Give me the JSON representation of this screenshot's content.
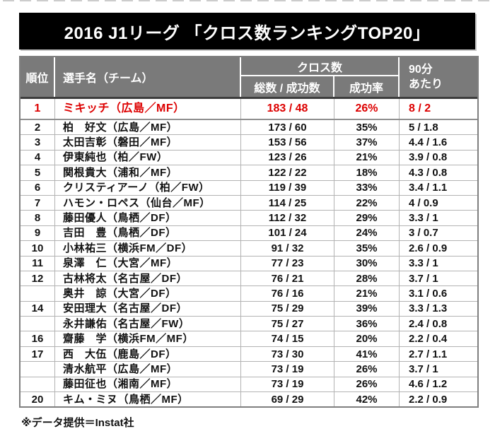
{
  "colors": {
    "banner_bg": "#000000",
    "banner_text": "#ffffff",
    "header_bg": "#7a7a7a",
    "highlight_red": "#dd0000",
    "grid_line": "#b3b3b3"
  },
  "table": {
    "header": {
      "rank": "順位",
      "player": "選手名（チーム）",
      "cross": "クロス数",
      "total_success": "総数 / 成功数",
      "success_rate": "成功率",
      "per90_line1": "90分",
      "per90_line2": "あたり"
    }
  },
  "chart_data": {
    "type": "table",
    "title": "2016 J1リーグ 「クロス数ランキングTOP20」",
    "columns": [
      "順位",
      "選手名（チーム）",
      "クロス数 総数 / 成功数",
      "クロス数 成功率",
      "90分あたり"
    ],
    "note": "※データ提供＝Instat社",
    "highlight_rank": "1",
    "rows": [
      {
        "rank": "1",
        "player": "ミキッチ（広島／MF）",
        "total_success": "183 / 48",
        "success_rate": "26%",
        "per90": "8 / 2",
        "highlight": true
      },
      {
        "rank": "2",
        "player": "柏　好文（広島／MF）",
        "total_success": "173 / 60",
        "success_rate": "35%",
        "per90": "5 / 1.8"
      },
      {
        "rank": "3",
        "player": "太田吉彰（磐田／MF）",
        "total_success": "153 / 56",
        "success_rate": "37%",
        "per90": "4.4 / 1.6"
      },
      {
        "rank": "4",
        "player": "伊東純也（柏／FW）",
        "total_success": "123 / 26",
        "success_rate": "21%",
        "per90": "3.9 / 0.8"
      },
      {
        "rank": "5",
        "player": "関根貴大（浦和／MF）",
        "total_success": "122 / 22",
        "success_rate": "18%",
        "per90": "4.3 / 0.8"
      },
      {
        "rank": "6",
        "player": "クリスティアーノ（柏／FW）",
        "total_success": "119 / 39",
        "success_rate": "33%",
        "per90": "3.4 / 1.1"
      },
      {
        "rank": "7",
        "player": "ハモン・ロペス（仙台／MF）",
        "total_success": "114 / 25",
        "success_rate": "22%",
        "per90": "4 / 0.9"
      },
      {
        "rank": "8",
        "player": "藤田優人（鳥栖／DF）",
        "total_success": "112 / 32",
        "success_rate": "29%",
        "per90": "3.3 / 1"
      },
      {
        "rank": "9",
        "player": "吉田　豊（鳥栖／DF）",
        "total_success": "101 / 24",
        "success_rate": "24%",
        "per90": "3 / 0.7"
      },
      {
        "rank": "10",
        "player": "小林祐三（横浜FM／DF）",
        "total_success": "91 / 32",
        "success_rate": "35%",
        "per90": "2.6 / 0.9"
      },
      {
        "rank": "11",
        "player": "泉澤　仁（大宮／MF）",
        "total_success": "77 / 23",
        "success_rate": "30%",
        "per90": "3.3 / 1"
      },
      {
        "rank": "12",
        "player": "古林将太（名古屋／DF）",
        "total_success": "76 / 21",
        "success_rate": "28%",
        "per90": "3.7 / 1"
      },
      {
        "rank": "",
        "player": "奥井　諒（大宮／DF）",
        "total_success": "76 / 16",
        "success_rate": "21%",
        "per90": "3.1 / 0.6"
      },
      {
        "rank": "14",
        "player": "安田理大（名古屋／DF）",
        "total_success": "75 / 29",
        "success_rate": "39%",
        "per90": "3.3 / 1.3"
      },
      {
        "rank": "",
        "player": "永井謙佑（名古屋／FW）",
        "total_success": "75 / 27",
        "success_rate": "36%",
        "per90": "2.4 / 0.8"
      },
      {
        "rank": "16",
        "player": "齋藤　学（横浜FM／MF）",
        "total_success": "74 / 15",
        "success_rate": "20%",
        "per90": "2.2 / 0.4"
      },
      {
        "rank": "17",
        "player": "西　大伍（鹿島／DF）",
        "total_success": "73 / 30",
        "success_rate": "41%",
        "per90": "2.7 / 1.1"
      },
      {
        "rank": "",
        "player": "清水航平（広島／MF）",
        "total_success": "73 / 19",
        "success_rate": "26%",
        "per90": "3.7 / 1"
      },
      {
        "rank": "",
        "player": "藤田征也（湘南／MF）",
        "total_success": "73 / 19",
        "success_rate": "26%",
        "per90": "4.6 / 1.2"
      },
      {
        "rank": "20",
        "player": "キム・ミヌ（鳥栖／MF）",
        "total_success": "69 / 29",
        "success_rate": "42%",
        "per90": "2.2 / 0.9"
      }
    ]
  }
}
